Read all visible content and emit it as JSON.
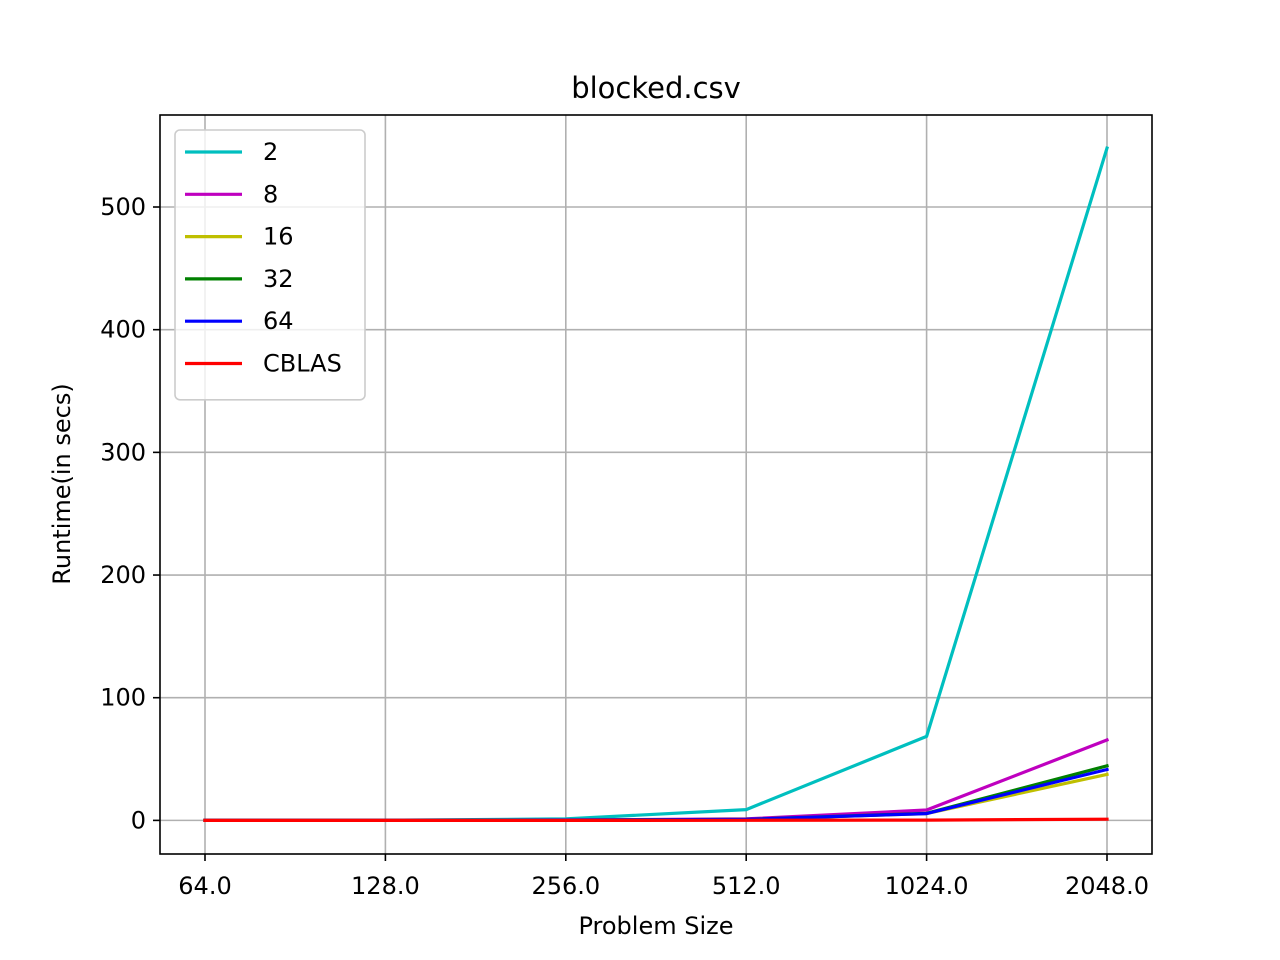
{
  "chart_data": {
    "type": "line",
    "title": "blocked.csv",
    "xlabel": "Problem Size",
    "ylabel": "Runtime(in secs)",
    "x_scale": "log2",
    "x": [
      64,
      128,
      256,
      512,
      1024,
      2048
    ],
    "x_tick_labels": [
      "64.0",
      "128.0",
      "256.0",
      "512.0",
      "1024.0",
      "2048.0"
    ],
    "y_ticks": [
      0,
      100,
      200,
      300,
      400,
      500
    ],
    "y_tick_labels": [
      "0",
      "100",
      "200",
      "300",
      "400",
      "500"
    ],
    "ylim": [
      -27.4,
      575
    ],
    "grid": true,
    "legend_position": "upper-left",
    "series": [
      {
        "name": "2",
        "color": "#00bfbf",
        "values": [
          0.02,
          0.15,
          1.2,
          8.8,
          68.5,
          548
        ]
      },
      {
        "name": "8",
        "color": "#bf00bf",
        "values": [
          0.01,
          0.05,
          0.3,
          1.2,
          8.5,
          65.5
        ]
      },
      {
        "name": "16",
        "color": "#bfbf00",
        "values": [
          0.01,
          0.04,
          0.2,
          0.8,
          5.5,
          37.5
        ]
      },
      {
        "name": "32",
        "color": "#008000",
        "values": [
          0.01,
          0.04,
          0.2,
          0.8,
          5.8,
          44.5
        ]
      },
      {
        "name": "64",
        "color": "#0000ff",
        "values": [
          0.01,
          0.04,
          0.2,
          0.8,
          5.5,
          41.5
        ]
      },
      {
        "name": "CBLAS",
        "color": "#ff0000",
        "values": [
          0.0,
          0.0,
          0.01,
          0.05,
          0.2,
          1.0
        ]
      }
    ]
  }
}
